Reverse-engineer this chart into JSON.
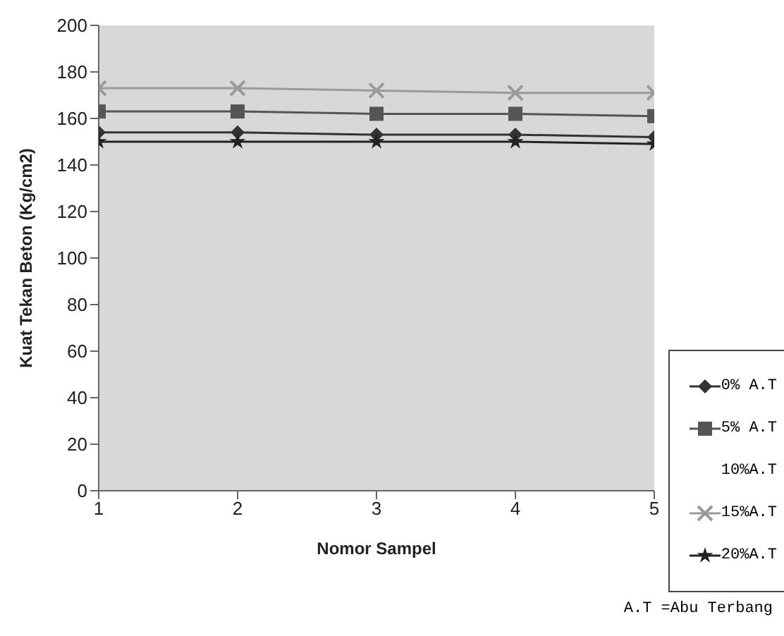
{
  "chart_data": {
    "type": "line",
    "xlabel": "Nomor Sampel",
    "ylabel": "Kuat Tekan Beton (Kg/cm2)",
    "x": [
      1,
      2,
      3,
      4,
      5
    ],
    "xlim": [
      1,
      5
    ],
    "xticks": [
      1,
      2,
      3,
      4,
      5
    ],
    "ylim": [
      0,
      200
    ],
    "yticks": [
      0,
      20,
      40,
      60,
      80,
      100,
      120,
      140,
      160,
      180,
      200
    ],
    "grid": false,
    "legend": "right",
    "annotations": [
      "A.T =Abu Terbang"
    ],
    "series": [
      {
        "name": "0% A.T",
        "color": "#333333",
        "marker": "diamond",
        "values": [
          154,
          154,
          153,
          153,
          152
        ]
      },
      {
        "name": "5% A.T",
        "color": "#555555",
        "marker": "square",
        "values": [
          163,
          163,
          162,
          162,
          161
        ]
      },
      {
        "name": "10%A.T",
        "values": [
          null,
          null,
          null,
          null,
          null
        ]
      },
      {
        "name": "15%A.T",
        "color": "#9a9a9a",
        "marker": "cross",
        "values": [
          173,
          173,
          172,
          171,
          171
        ]
      },
      {
        "name": "20%A.T",
        "color": "#222222",
        "marker": "star",
        "values": [
          150,
          150,
          150,
          150,
          149
        ]
      }
    ]
  }
}
